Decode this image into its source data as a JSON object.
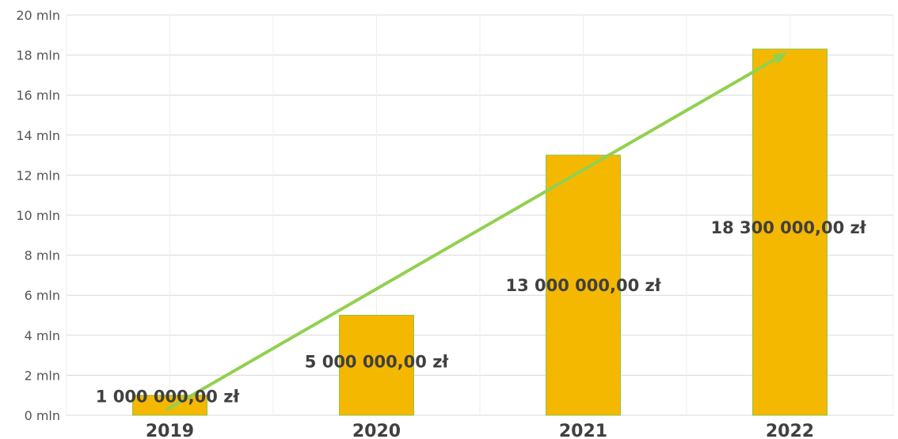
{
  "chart_data": {
    "type": "bar",
    "categories": [
      "2019",
      "2020",
      "2021",
      "2022"
    ],
    "values": [
      1000000,
      5000000,
      13000000,
      18300000
    ],
    "data_labels": [
      "1 000 000,00 zł",
      "5 000 000,00 zł",
      "13 000 000,00 zł",
      "18 300 000,00 zł"
    ],
    "yticks": [
      {
        "value": 0,
        "label": "0  mln"
      },
      {
        "value": 2000000,
        "label": "2  mln"
      },
      {
        "value": 4000000,
        "label": "4 mln"
      },
      {
        "value": 6000000,
        "label": "6 mln"
      },
      {
        "value": 8000000,
        "label": "8 mln"
      },
      {
        "value": 10000000,
        "label": "10 mln"
      },
      {
        "value": 12000000,
        "label": "12 mln"
      },
      {
        "value": 14000000,
        "label": "14 mln"
      },
      {
        "value": 16000000,
        "label": "16 mln"
      },
      {
        "value": 18000000,
        "label": "18 mln"
      },
      {
        "value": 20000000,
        "label": "20 mln"
      }
    ],
    "ylim": [
      0,
      20000000
    ],
    "grid": true,
    "trend_arrow": {
      "from": {
        "x": "2019",
        "y": 300000
      },
      "to": {
        "x": "2022",
        "y": 18300000
      }
    },
    "colors": {
      "bar_fill": "#F5B800",
      "bar_stroke": "#8BC34A",
      "trend": "#92D050",
      "grid": "#D9D9D9",
      "label_text": "#404040"
    }
  }
}
